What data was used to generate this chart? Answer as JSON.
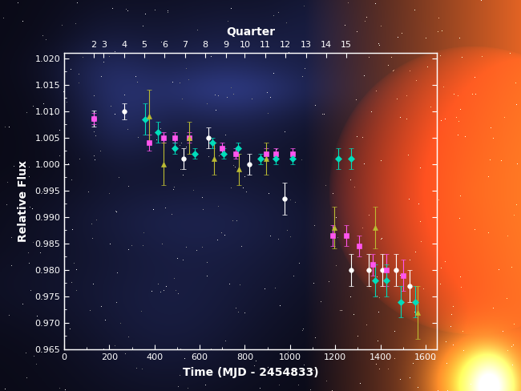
{
  "title": "Quarter",
  "xlabel": "Time (MJD - 2454833)",
  "ylabel": "Relative Flux",
  "xlim": [
    0,
    1650
  ],
  "ylim": [
    0.965,
    1.021
  ],
  "text_color": "#ffffff",
  "axes_color": "#ffffff",
  "fig_bg": "#000000",
  "white_color": "#ffffff",
  "magenta_color": "#ff55ee",
  "cyan_color": "#00ddbb",
  "yellow_color": "#bbbb33",
  "white_x": [
    131,
    265,
    530,
    640,
    820,
    975,
    1270,
    1350,
    1410,
    1470,
    1530
  ],
  "white_y": [
    1.0086,
    1.01,
    1.001,
    1.005,
    1.0,
    0.9935,
    0.98,
    0.98,
    0.98,
    0.98,
    0.977
  ],
  "white_yerr": [
    0.0015,
    0.0015,
    0.002,
    0.002,
    0.002,
    0.003,
    0.003,
    0.003,
    0.003,
    0.003,
    0.003
  ],
  "magenta_x": [
    131,
    375,
    440,
    490,
    555,
    700,
    760,
    895,
    935,
    1010,
    1190,
    1250,
    1305,
    1365,
    1425,
    1500
  ],
  "magenta_y": [
    1.0086,
    1.004,
    1.005,
    1.005,
    1.005,
    1.003,
    1.002,
    1.002,
    1.002,
    1.002,
    0.9865,
    0.9865,
    0.9845,
    0.981,
    0.98,
    0.979
  ],
  "magenta_yerr": [
    0.001,
    0.0015,
    0.001,
    0.001,
    0.001,
    0.001,
    0.001,
    0.001,
    0.001,
    0.001,
    0.002,
    0.002,
    0.002,
    0.002,
    0.003,
    0.003
  ],
  "cyan_x": [
    360,
    415,
    490,
    580,
    655,
    705,
    770,
    870,
    935,
    1010,
    1215,
    1270,
    1375,
    1425,
    1490,
    1555
  ],
  "cyan_y": [
    1.0085,
    1.006,
    1.003,
    1.002,
    1.004,
    1.002,
    1.003,
    1.001,
    1.001,
    1.001,
    1.001,
    1.001,
    0.978,
    0.978,
    0.974,
    0.974
  ],
  "cyan_yerr": [
    0.003,
    0.002,
    0.001,
    0.001,
    0.001,
    0.001,
    0.001,
    0.001,
    0.001,
    0.001,
    0.002,
    0.002,
    0.003,
    0.003,
    0.003,
    0.003
  ],
  "yellow_x": [
    375,
    440,
    555,
    665,
    775,
    895,
    1195,
    1375,
    1565
  ],
  "yellow_y": [
    1.009,
    1.0,
    1.005,
    1.001,
    0.999,
    1.001,
    0.988,
    0.988,
    0.972
  ],
  "yellow_yerr": [
    0.005,
    0.004,
    0.003,
    0.003,
    0.003,
    0.003,
    0.004,
    0.004,
    0.005
  ],
  "quarter_x": [
    131,
    175,
    265,
    355,
    445,
    535,
    625,
    715,
    800,
    890,
    980,
    1070,
    1160,
    1250
  ],
  "quarter_labels": [
    "2",
    "3",
    "4",
    "5",
    "6",
    "7",
    "8",
    "9",
    "10",
    "11",
    "12",
    "13",
    "14",
    "15"
  ],
  "yticks": [
    0.965,
    0.97,
    0.975,
    0.98,
    0.985,
    0.99,
    0.995,
    1.0,
    1.005,
    1.01,
    1.015,
    1.02
  ],
  "xticks": [
    0,
    200,
    400,
    600,
    800,
    1000,
    1200,
    1400,
    1600
  ]
}
